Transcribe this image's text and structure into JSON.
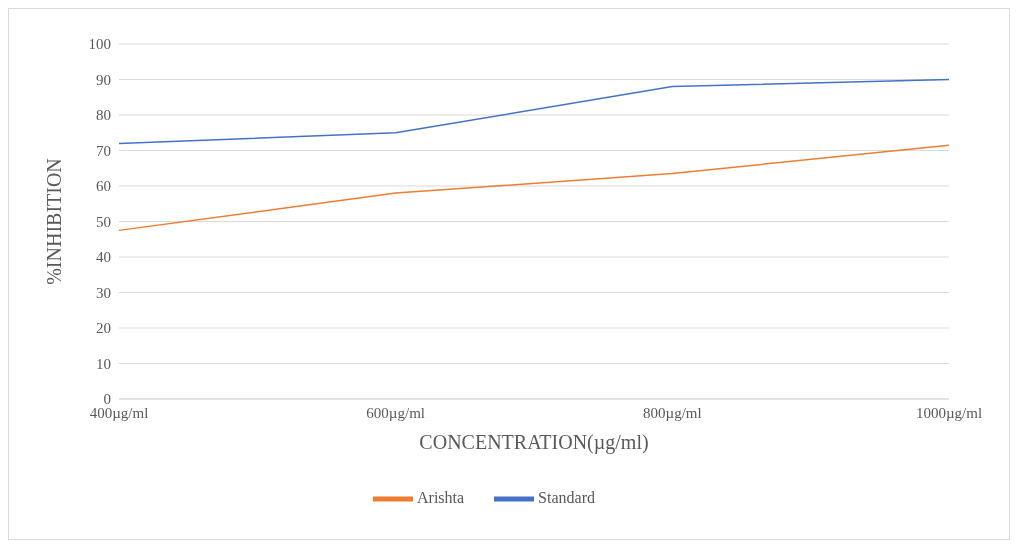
{
  "chart_data": {
    "type": "line",
    "xlabel": "CONCENTRATION(µg/ml)",
    "ylabel": "%INHIBITION",
    "categories": [
      "400µg/ml",
      "600µg/ml",
      "800µg/ml",
      "1000µg/ml"
    ],
    "series": [
      {
        "name": "Standard",
        "color": "#4472c4",
        "values": [
          72,
          75,
          88,
          90
        ]
      },
      {
        "name": "Arishta",
        "color": "#ed7d31",
        "values": [
          47.5,
          58,
          63.5,
          71.5
        ]
      }
    ],
    "ylim": [
      0,
      100
    ],
    "yticks": [
      0,
      10,
      20,
      30,
      40,
      50,
      60,
      70,
      80,
      90,
      100
    ],
    "grid": "y",
    "legend": "bottom",
    "marker": "none",
    "line_style": "solid"
  }
}
